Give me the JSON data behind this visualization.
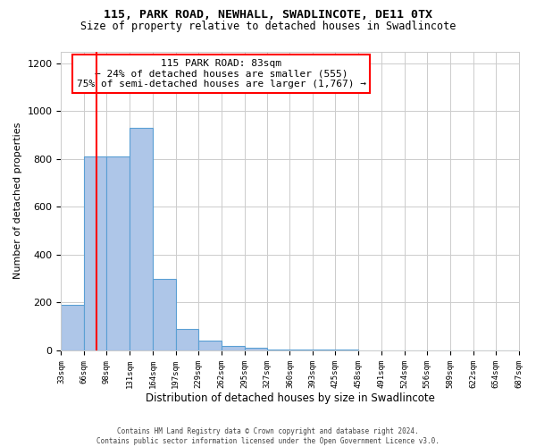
{
  "title1": "115, PARK ROAD, NEWHALL, SWADLINCOTE, DE11 0TX",
  "title2": "Size of property relative to detached houses in Swadlincote",
  "xlabel": "Distribution of detached houses by size in Swadlincote",
  "ylabel": "Number of detached properties",
  "footer1": "Contains HM Land Registry data © Crown copyright and database right 2024.",
  "footer2": "Contains public sector information licensed under the Open Government Licence v3.0.",
  "annotation_title": "115 PARK ROAD: 83sqm",
  "annotation_line1": "← 24% of detached houses are smaller (555)",
  "annotation_line2": "75% of semi-detached houses are larger (1,767) →",
  "bar_color": "#aec6e8",
  "bar_edge_color": "#5a9fd4",
  "vline_color": "red",
  "vline_x": 83,
  "bin_edges": [
    33,
    66,
    98,
    131,
    164,
    197,
    229,
    262,
    295,
    327,
    360,
    393,
    425,
    458,
    491,
    524,
    556,
    589,
    622,
    654,
    687
  ],
  "bar_heights": [
    190,
    810,
    810,
    930,
    300,
    90,
    40,
    20,
    10,
    5,
    3,
    2,
    2,
    1,
    1,
    1,
    0,
    0,
    0,
    0
  ],
  "ylim": [
    0,
    1250
  ],
  "yticks": [
    0,
    200,
    400,
    600,
    800,
    1000,
    1200
  ],
  "background_color": "#ffffff",
  "annotation_box_color": "#ffffff",
  "annotation_box_edge": "red",
  "title1_fontsize": 9.5,
  "title2_fontsize": 8.5,
  "ylabel_fontsize": 8,
  "xlabel_fontsize": 8.5,
  "ytick_fontsize": 8,
  "xtick_fontsize": 6.5,
  "footer_fontsize": 5.5,
  "annot_fontsize": 8
}
